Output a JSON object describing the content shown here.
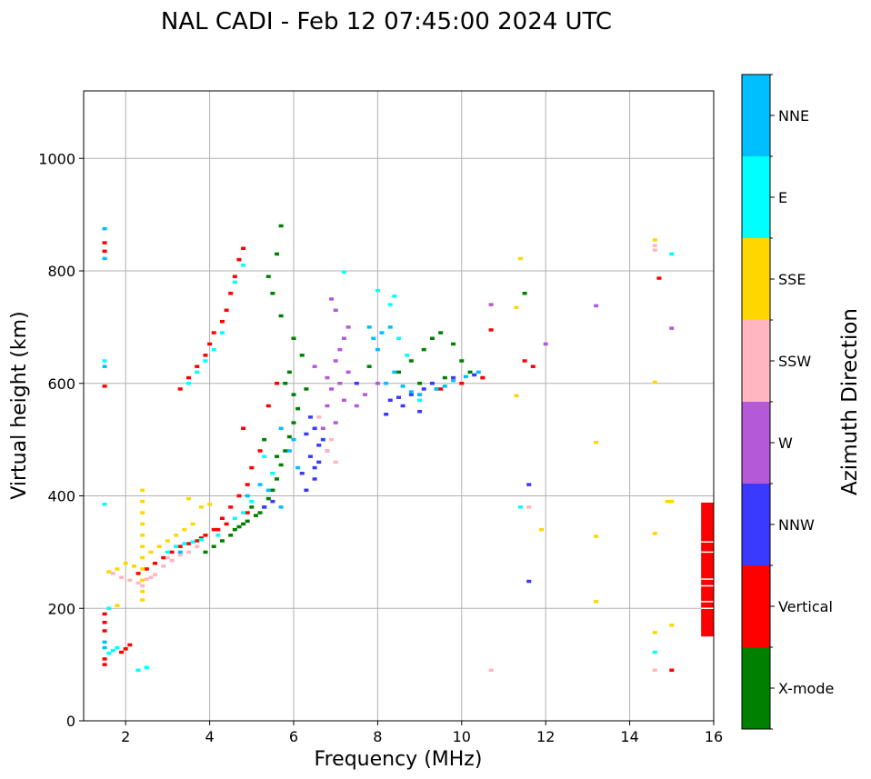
{
  "chart_data": {
    "type": "scatter",
    "title": "NAL CADI - Feb 12 07:45:00 2024 UTC",
    "xlabel": "Frequency (MHz)",
    "ylabel": "Virtual height (km)",
    "xlim": [
      1,
      16
    ],
    "ylim": [
      0,
      1120
    ],
    "xticks": [
      2,
      4,
      6,
      8,
      10,
      12,
      14,
      16
    ],
    "yticks": [
      0,
      200,
      400,
      600,
      800,
      1000
    ],
    "grid": true,
    "colorbar": {
      "label": "Azimuth Direction",
      "categories": [
        {
          "name": "X-mode",
          "color": "#008000"
        },
        {
          "name": "Vertical",
          "color": "#ff0000"
        },
        {
          "name": "NNW",
          "color": "#3a3aff"
        },
        {
          "name": "W",
          "color": "#b45ad8"
        },
        {
          "name": "SSW",
          "color": "#ffb6c1"
        },
        {
          "name": "SSE",
          "color": "#ffd700"
        },
        {
          "name": "E",
          "color": "#00ffff"
        },
        {
          "name": "NNE",
          "color": "#00bfff"
        }
      ]
    },
    "series": [
      {
        "name": "X-mode",
        "points": [
          [
            3.9,
            300
          ],
          [
            4.1,
            310
          ],
          [
            4.3,
            320
          ],
          [
            4.5,
            330
          ],
          [
            4.7,
            345
          ],
          [
            4.9,
            355
          ],
          [
            5.1,
            365
          ],
          [
            5.3,
            380
          ],
          [
            5.4,
            395
          ],
          [
            5.5,
            410
          ],
          [
            5.6,
            430
          ],
          [
            5.7,
            455
          ],
          [
            5.8,
            480
          ],
          [
            5.9,
            505
          ],
          [
            6.0,
            530
          ],
          [
            6.1,
            555
          ],
          [
            6.0,
            580
          ],
          [
            5.8,
            600
          ],
          [
            5.9,
            620
          ],
          [
            6.2,
            650
          ],
          [
            6.0,
            680
          ],
          [
            5.7,
            720
          ],
          [
            5.5,
            760
          ],
          [
            5.4,
            790
          ],
          [
            5.6,
            830
          ],
          [
            5.7,
            880
          ],
          [
            8.5,
            620
          ],
          [
            8.8,
            640
          ],
          [
            9.1,
            660
          ],
          [
            9.3,
            680
          ],
          [
            9.5,
            690
          ],
          [
            9.8,
            670
          ],
          [
            10.0,
            640
          ],
          [
            10.2,
            620
          ],
          [
            10.5,
            610
          ],
          [
            9.4,
            590
          ],
          [
            11.5,
            760
          ],
          [
            4.6,
            340
          ],
          [
            5.2,
            370
          ],
          [
            5.0,
            380
          ],
          [
            4.8,
            350
          ],
          [
            5.5,
            440
          ],
          [
            5.6,
            470
          ],
          [
            5.3,
            500
          ],
          [
            6.3,
            590
          ],
          [
            7.8,
            630
          ],
          [
            9.0,
            600
          ],
          [
            9.6,
            610
          ]
        ]
      },
      {
        "name": "Vertical",
        "points": [
          [
            1.5,
            190
          ],
          [
            1.5,
            175
          ],
          [
            1.5,
            160
          ],
          [
            1.5,
            110
          ],
          [
            1.5,
            100
          ],
          [
            1.5,
            595
          ],
          [
            1.5,
            850
          ],
          [
            1.5,
            835
          ],
          [
            2.1,
            135
          ],
          [
            2.0,
            128
          ],
          [
            1.9,
            122
          ],
          [
            2.3,
            262
          ],
          [
            2.5,
            270
          ],
          [
            2.7,
            280
          ],
          [
            2.9,
            290
          ],
          [
            3.1,
            300
          ],
          [
            3.3,
            310
          ],
          [
            3.5,
            315
          ],
          [
            3.7,
            320
          ],
          [
            3.9,
            330
          ],
          [
            4.1,
            340
          ],
          [
            4.3,
            360
          ],
          [
            4.5,
            380
          ],
          [
            4.7,
            400
          ],
          [
            4.9,
            420
          ],
          [
            5.0,
            450
          ],
          [
            3.3,
            590
          ],
          [
            3.5,
            610
          ],
          [
            3.7,
            630
          ],
          [
            3.9,
            650
          ],
          [
            4.0,
            670
          ],
          [
            4.1,
            690
          ],
          [
            4.3,
            710
          ],
          [
            4.4,
            730
          ],
          [
            4.5,
            760
          ],
          [
            4.6,
            790
          ],
          [
            4.7,
            820
          ],
          [
            4.8,
            840
          ],
          [
            9.0,
            580
          ],
          [
            9.5,
            590
          ],
          [
            10.0,
            600
          ],
          [
            10.5,
            610
          ],
          [
            10.7,
            695
          ],
          [
            11.5,
            640
          ],
          [
            11.7,
            630
          ],
          [
            14.7,
            787
          ],
          [
            15.0,
            90
          ],
          [
            4.2,
            340
          ],
          [
            3.8,
            325
          ],
          [
            4.4,
            350
          ],
          [
            4.9,
            370
          ],
          [
            5.2,
            480
          ],
          [
            4.8,
            520
          ],
          [
            5.4,
            560
          ],
          [
            5.6,
            600
          ]
        ]
      },
      {
        "name": "NNW",
        "points": [
          [
            6.3,
            410
          ],
          [
            6.5,
            430
          ],
          [
            6.5,
            450
          ],
          [
            6.4,
            470
          ],
          [
            6.6,
            490
          ],
          [
            6.7,
            500
          ],
          [
            6.5,
            520
          ],
          [
            6.4,
            540
          ],
          [
            6.3,
            510
          ],
          [
            6.6,
            460
          ],
          [
            8.3,
            570
          ],
          [
            8.5,
            575
          ],
          [
            8.8,
            580
          ],
          [
            9.1,
            590
          ],
          [
            9.3,
            600
          ],
          [
            8.6,
            560
          ],
          [
            9.0,
            550
          ],
          [
            8.2,
            545
          ],
          [
            11.6,
            420
          ],
          [
            11.6,
            248
          ],
          [
            5.3,
            380
          ],
          [
            5.5,
            390
          ],
          [
            6.8,
            480
          ],
          [
            6.2,
            440
          ],
          [
            7.5,
            600
          ],
          [
            9.8,
            610
          ],
          [
            10.3,
            615
          ]
        ]
      },
      {
        "name": "W",
        "points": [
          [
            6.8,
            610
          ],
          [
            7.0,
            640
          ],
          [
            7.1,
            660
          ],
          [
            7.2,
            680
          ],
          [
            7.3,
            700
          ],
          [
            7.0,
            730
          ],
          [
            6.9,
            750
          ],
          [
            7.1,
            600
          ],
          [
            7.2,
            570
          ],
          [
            6.9,
            590
          ],
          [
            7.0,
            530
          ],
          [
            6.7,
            520
          ],
          [
            6.8,
            560
          ],
          [
            7.5,
            560
          ],
          [
            7.7,
            580
          ],
          [
            8.0,
            600
          ],
          [
            10.7,
            740
          ],
          [
            12.0,
            670
          ],
          [
            13.2,
            738
          ],
          [
            15.0,
            698
          ],
          [
            6.5,
            630
          ],
          [
            7.3,
            620
          ]
        ]
      },
      {
        "name": "SSW",
        "points": [
          [
            1.7,
            262
          ],
          [
            1.9,
            255
          ],
          [
            2.1,
            250
          ],
          [
            2.3,
            245
          ],
          [
            2.5,
            252
          ],
          [
            2.7,
            260
          ],
          [
            2.9,
            275
          ],
          [
            3.1,
            285
          ],
          [
            3.3,
            295
          ],
          [
            3.5,
            300
          ],
          [
            3.7,
            310
          ],
          [
            6.8,
            480
          ],
          [
            7.0,
            460
          ],
          [
            6.9,
            500
          ],
          [
            6.6,
            540
          ],
          [
            10.7,
            90
          ],
          [
            14.6,
            90
          ],
          [
            14.6,
            837
          ],
          [
            14.6,
            845
          ],
          [
            11.6,
            380
          ],
          [
            2.4,
            240
          ],
          [
            2.6,
            255
          ],
          [
            3.0,
            290
          ]
        ]
      },
      {
        "name": "SSE",
        "points": [
          [
            2.4,
            410
          ],
          [
            2.4,
            390
          ],
          [
            2.4,
            370
          ],
          [
            2.4,
            350
          ],
          [
            2.4,
            330
          ],
          [
            2.4,
            310
          ],
          [
            2.4,
            290
          ],
          [
            2.4,
            270
          ],
          [
            2.4,
            250
          ],
          [
            2.4,
            230
          ],
          [
            2.4,
            215
          ],
          [
            1.6,
            265
          ],
          [
            1.8,
            270
          ],
          [
            2.0,
            280
          ],
          [
            2.2,
            275
          ],
          [
            2.6,
            300
          ],
          [
            2.8,
            310
          ],
          [
            3.0,
            320
          ],
          [
            3.2,
            330
          ],
          [
            3.4,
            340
          ],
          [
            3.6,
            350
          ],
          [
            3.8,
            380
          ],
          [
            4.0,
            385
          ],
          [
            3.5,
            395
          ],
          [
            1.8,
            205
          ],
          [
            11.3,
            578
          ],
          [
            11.3,
            735
          ],
          [
            11.4,
            822
          ],
          [
            11.9,
            340
          ],
          [
            13.2,
            495
          ],
          [
            13.2,
            328
          ],
          [
            13.2,
            212
          ],
          [
            14.6,
            855
          ],
          [
            14.6,
            602
          ],
          [
            14.6,
            333
          ],
          [
            14.6,
            157
          ],
          [
            14.9,
            390
          ],
          [
            15.0,
            390
          ],
          [
            15.0,
            170
          ]
        ]
      },
      {
        "name": "E",
        "points": [
          [
            1.6,
            120
          ],
          [
            1.7,
            125
          ],
          [
            1.8,
            130
          ],
          [
            2.3,
            90
          ],
          [
            2.5,
            95
          ],
          [
            3.0,
            300
          ],
          [
            3.2,
            310
          ],
          [
            3.4,
            315
          ],
          [
            3.6,
            318
          ],
          [
            3.8,
            322
          ],
          [
            4.2,
            330
          ],
          [
            4.6,
            360
          ],
          [
            4.8,
            370
          ],
          [
            5.0,
            390
          ],
          [
            5.3,
            470
          ],
          [
            5.5,
            440
          ],
          [
            3.5,
            600
          ],
          [
            3.7,
            620
          ],
          [
            3.9,
            640
          ],
          [
            4.1,
            660
          ],
          [
            4.3,
            690
          ],
          [
            4.6,
            780
          ],
          [
            4.8,
            810
          ],
          [
            8.3,
            740
          ],
          [
            8.4,
            755
          ],
          [
            8.0,
            765
          ],
          [
            7.2,
            798
          ],
          [
            8.5,
            680
          ],
          [
            8.7,
            650
          ],
          [
            9.0,
            570
          ],
          [
            11.4,
            380
          ],
          [
            14.6,
            122
          ],
          [
            15.0,
            830
          ],
          [
            1.5,
            640
          ],
          [
            1.5,
            385
          ],
          [
            1.6,
            200
          ]
        ]
      },
      {
        "name": "NNE",
        "points": [
          [
            1.5,
            130
          ],
          [
            1.5,
            140
          ],
          [
            1.5,
            630
          ],
          [
            1.5,
            875
          ],
          [
            1.5,
            822
          ],
          [
            5.7,
            520
          ],
          [
            5.9,
            480
          ],
          [
            6.1,
            450
          ],
          [
            5.4,
            410
          ],
          [
            5.7,
            380
          ],
          [
            6.0,
            500
          ],
          [
            7.9,
            680
          ],
          [
            7.8,
            700
          ],
          [
            8.1,
            690
          ],
          [
            8.3,
            700
          ],
          [
            8.0,
            660
          ],
          [
            8.6,
            595
          ],
          [
            8.8,
            585
          ],
          [
            9.0,
            580
          ],
          [
            9.4,
            590
          ],
          [
            9.6,
            595
          ],
          [
            9.8,
            605
          ],
          [
            10.1,
            612
          ],
          [
            10.4,
            620
          ],
          [
            8.2,
            600
          ],
          [
            8.4,
            620
          ],
          [
            4.9,
            400
          ],
          [
            5.2,
            420
          ],
          [
            3.3,
            300
          ]
        ]
      }
    ],
    "vertical_bar": {
      "series": "Vertical",
      "x_range": [
        15.7,
        16
      ],
      "y_range": [
        150,
        388
      ],
      "gaps": [
        200,
        212,
        240,
        252,
        300,
        318
      ]
    }
  }
}
